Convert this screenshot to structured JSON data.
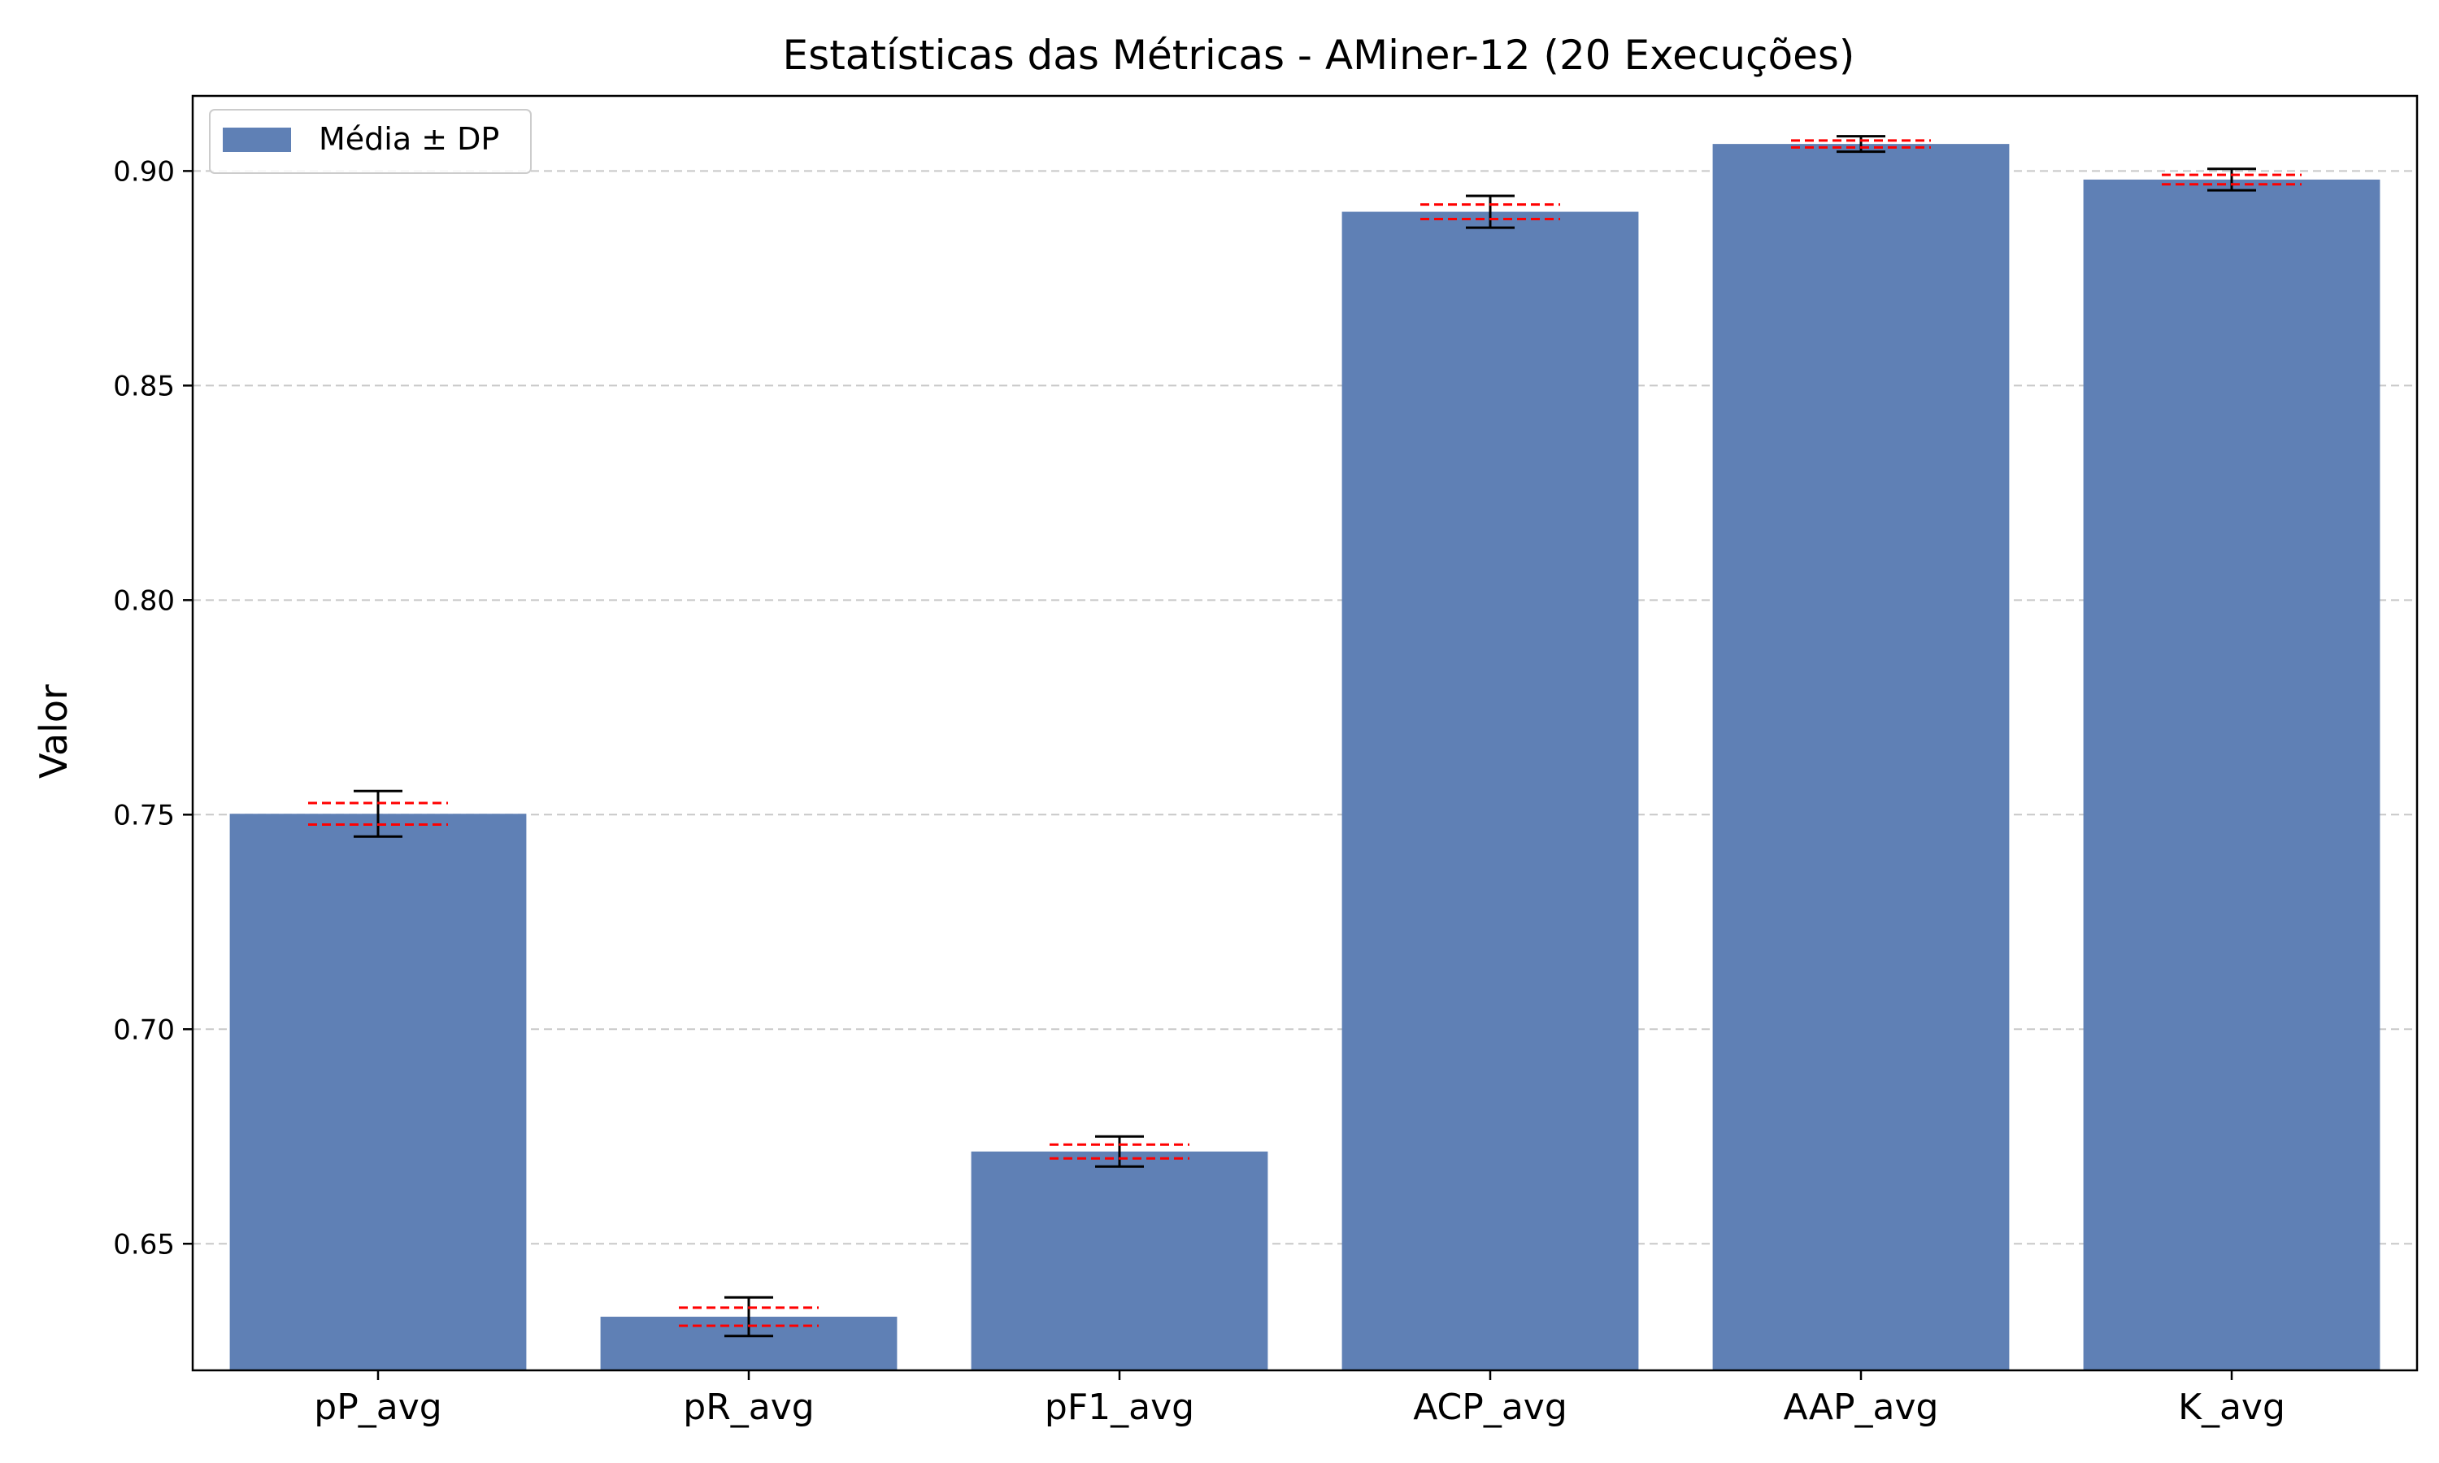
{
  "chart_data": {
    "type": "bar",
    "title": "Estatísticas das Métricas - AMiner-12 (20 Execuções)",
    "xlabel": "",
    "ylabel": "Valor",
    "categories": [
      "pP_avg",
      "pR_avg",
      "pF1_avg",
      "ACP_avg",
      "AAP_avg",
      "K_avg"
    ],
    "series": [
      {
        "name": "Média ± DP",
        "values": [
          0.7502,
          0.633,
          0.6715,
          0.8905,
          0.9063,
          0.898
        ],
        "std": [
          0.0053,
          0.0045,
          0.0035,
          0.0037,
          0.0018,
          0.0025
        ],
        "ci_low": [
          0.7477,
          0.6309,
          0.6699,
          0.8888,
          0.9055,
          0.8969
        ],
        "ci_high": [
          0.7527,
          0.6351,
          0.6731,
          0.8922,
          0.9071,
          0.8991
        ]
      }
    ],
    "ylim": [
      0.6205,
      0.9175
    ],
    "yticks": [
      0.65,
      0.7,
      0.75,
      0.8,
      0.85,
      0.9
    ],
    "ytick_labels": [
      "0.65",
      "0.70",
      "0.75",
      "0.80",
      "0.85",
      "0.90"
    ],
    "grid": "y-dashed",
    "legend_position": "top-left",
    "colors": {
      "bar": "#5f80b5",
      "error_bar": "#000000",
      "ci_line": "#ff0000",
      "grid": "#c8c8c8"
    }
  }
}
